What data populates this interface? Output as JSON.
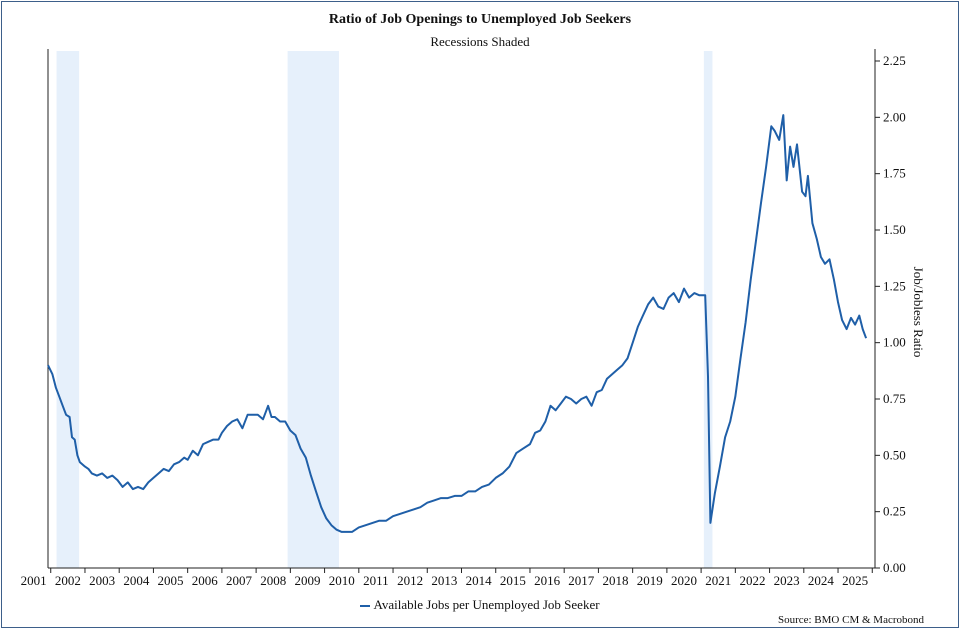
{
  "chart_data": {
    "type": "line",
    "title": "Ratio of Job Openings to Unemployed Job Seekers",
    "subtitle": "Recessions Shaded",
    "ylabel": "Job/Jobless Ratio",
    "ylim": [
      0.0,
      2.25
    ],
    "yticks": [
      "0.00",
      "0.25",
      "0.50",
      "0.75",
      "1.00",
      "1.25",
      "1.50",
      "1.75",
      "2.00",
      "2.25"
    ],
    "xlim": [
      2000.92,
      2025.08
    ],
    "xticks": [
      "2001",
      "2002",
      "2003",
      "2004",
      "2005",
      "2006",
      "2007",
      "2008",
      "2009",
      "2010",
      "2011",
      "2012",
      "2013",
      "2014",
      "2015",
      "2016",
      "2017",
      "2018",
      "2019",
      "2020",
      "2021",
      "2022",
      "2023",
      "2024",
      "2025"
    ],
    "y_axis_side": "right",
    "grid": false,
    "legend_position": "bottom-center",
    "recessions": [
      [
        2001.17,
        2001.83
      ],
      [
        2007.92,
        2009.42
      ],
      [
        2020.08,
        2020.33
      ]
    ],
    "series": [
      {
        "name": "Available Jobs per Unemployed Job Seeker",
        "color": "#1f5fa8",
        "points": [
          [
            2000.92,
            0.9
          ],
          [
            2001.05,
            0.86
          ],
          [
            2001.15,
            0.8
          ],
          [
            2001.25,
            0.76
          ],
          [
            2001.35,
            0.72
          ],
          [
            2001.45,
            0.68
          ],
          [
            2001.55,
            0.67
          ],
          [
            2001.62,
            0.58
          ],
          [
            2001.7,
            0.57
          ],
          [
            2001.78,
            0.5
          ],
          [
            2001.85,
            0.47
          ],
          [
            2002.0,
            0.45
          ],
          [
            2002.1,
            0.44
          ],
          [
            2002.2,
            0.42
          ],
          [
            2002.35,
            0.41
          ],
          [
            2002.5,
            0.42
          ],
          [
            2002.65,
            0.4
          ],
          [
            2002.8,
            0.41
          ],
          [
            2002.95,
            0.39
          ],
          [
            2003.1,
            0.36
          ],
          [
            2003.25,
            0.38
          ],
          [
            2003.4,
            0.35
          ],
          [
            2003.55,
            0.36
          ],
          [
            2003.7,
            0.35
          ],
          [
            2003.85,
            0.38
          ],
          [
            2004.0,
            0.4
          ],
          [
            2004.15,
            0.42
          ],
          [
            2004.3,
            0.44
          ],
          [
            2004.45,
            0.43
          ],
          [
            2004.6,
            0.46
          ],
          [
            2004.75,
            0.47
          ],
          [
            2004.9,
            0.49
          ],
          [
            2005.0,
            0.48
          ],
          [
            2005.15,
            0.52
          ],
          [
            2005.3,
            0.5
          ],
          [
            2005.45,
            0.55
          ],
          [
            2005.6,
            0.56
          ],
          [
            2005.75,
            0.57
          ],
          [
            2005.9,
            0.57
          ],
          [
            2006.0,
            0.6
          ],
          [
            2006.15,
            0.63
          ],
          [
            2006.3,
            0.65
          ],
          [
            2006.45,
            0.66
          ],
          [
            2006.6,
            0.62
          ],
          [
            2006.75,
            0.68
          ],
          [
            2006.9,
            0.68
          ],
          [
            2007.05,
            0.68
          ],
          [
            2007.2,
            0.66
          ],
          [
            2007.35,
            0.72
          ],
          [
            2007.45,
            0.67
          ],
          [
            2007.55,
            0.67
          ],
          [
            2007.7,
            0.65
          ],
          [
            2007.85,
            0.65
          ],
          [
            2008.0,
            0.61
          ],
          [
            2008.15,
            0.59
          ],
          [
            2008.3,
            0.53
          ],
          [
            2008.45,
            0.49
          ],
          [
            2008.6,
            0.41
          ],
          [
            2008.75,
            0.34
          ],
          [
            2008.9,
            0.27
          ],
          [
            2009.05,
            0.22
          ],
          [
            2009.2,
            0.19
          ],
          [
            2009.35,
            0.17
          ],
          [
            2009.5,
            0.16
          ],
          [
            2009.65,
            0.16
          ],
          [
            2009.8,
            0.16
          ],
          [
            2010.0,
            0.18
          ],
          [
            2010.2,
            0.19
          ],
          [
            2010.4,
            0.2
          ],
          [
            2010.6,
            0.21
          ],
          [
            2010.8,
            0.21
          ],
          [
            2011.0,
            0.23
          ],
          [
            2011.2,
            0.24
          ],
          [
            2011.4,
            0.25
          ],
          [
            2011.6,
            0.26
          ],
          [
            2011.8,
            0.27
          ],
          [
            2012.0,
            0.29
          ],
          [
            2012.2,
            0.3
          ],
          [
            2012.4,
            0.31
          ],
          [
            2012.6,
            0.31
          ],
          [
            2012.8,
            0.32
          ],
          [
            2013.0,
            0.32
          ],
          [
            2013.2,
            0.34
          ],
          [
            2013.4,
            0.34
          ],
          [
            2013.6,
            0.36
          ],
          [
            2013.8,
            0.37
          ],
          [
            2014.0,
            0.4
          ],
          [
            2014.2,
            0.42
          ],
          [
            2014.4,
            0.45
          ],
          [
            2014.6,
            0.51
          ],
          [
            2014.8,
            0.53
          ],
          [
            2015.0,
            0.55
          ],
          [
            2015.15,
            0.6
          ],
          [
            2015.3,
            0.61
          ],
          [
            2015.45,
            0.65
          ],
          [
            2015.6,
            0.72
          ],
          [
            2015.75,
            0.7
          ],
          [
            2015.9,
            0.73
          ],
          [
            2016.05,
            0.76
          ],
          [
            2016.2,
            0.75
          ],
          [
            2016.35,
            0.73
          ],
          [
            2016.5,
            0.75
          ],
          [
            2016.65,
            0.76
          ],
          [
            2016.8,
            0.72
          ],
          [
            2016.95,
            0.78
          ],
          [
            2017.1,
            0.79
          ],
          [
            2017.25,
            0.84
          ],
          [
            2017.4,
            0.86
          ],
          [
            2017.55,
            0.88
          ],
          [
            2017.7,
            0.9
          ],
          [
            2017.85,
            0.93
          ],
          [
            2018.0,
            1.0
          ],
          [
            2018.15,
            1.07
          ],
          [
            2018.3,
            1.12
          ],
          [
            2018.45,
            1.17
          ],
          [
            2018.6,
            1.2
          ],
          [
            2018.75,
            1.16
          ],
          [
            2018.9,
            1.15
          ],
          [
            2019.05,
            1.2
          ],
          [
            2019.2,
            1.22
          ],
          [
            2019.35,
            1.18
          ],
          [
            2019.5,
            1.24
          ],
          [
            2019.65,
            1.2
          ],
          [
            2019.8,
            1.22
          ],
          [
            2019.95,
            1.21
          ],
          [
            2020.12,
            1.21
          ],
          [
            2020.2,
            0.85
          ],
          [
            2020.27,
            0.2
          ],
          [
            2020.4,
            0.33
          ],
          [
            2020.55,
            0.45
          ],
          [
            2020.7,
            0.58
          ],
          [
            2020.85,
            0.65
          ],
          [
            2021.0,
            0.76
          ],
          [
            2021.15,
            0.93
          ],
          [
            2021.3,
            1.09
          ],
          [
            2021.45,
            1.28
          ],
          [
            2021.6,
            1.45
          ],
          [
            2021.75,
            1.62
          ],
          [
            2021.9,
            1.78
          ],
          [
            2022.05,
            1.96
          ],
          [
            2022.15,
            1.94
          ],
          [
            2022.28,
            1.9
          ],
          [
            2022.4,
            2.01
          ],
          [
            2022.5,
            1.72
          ],
          [
            2022.6,
            1.87
          ],
          [
            2022.7,
            1.78
          ],
          [
            2022.8,
            1.88
          ],
          [
            2022.95,
            1.67
          ],
          [
            2023.05,
            1.65
          ],
          [
            2023.12,
            1.74
          ],
          [
            2023.25,
            1.53
          ],
          [
            2023.38,
            1.46
          ],
          [
            2023.5,
            1.38
          ],
          [
            2023.62,
            1.35
          ],
          [
            2023.75,
            1.37
          ],
          [
            2023.88,
            1.28
          ],
          [
            2024.0,
            1.18
          ],
          [
            2024.12,
            1.1
          ],
          [
            2024.25,
            1.06
          ],
          [
            2024.38,
            1.11
          ],
          [
            2024.5,
            1.08
          ],
          [
            2024.62,
            1.12
          ],
          [
            2024.72,
            1.06
          ],
          [
            2024.82,
            1.02
          ]
        ]
      }
    ],
    "source": "Source: BMO CM & Macrobond"
  }
}
